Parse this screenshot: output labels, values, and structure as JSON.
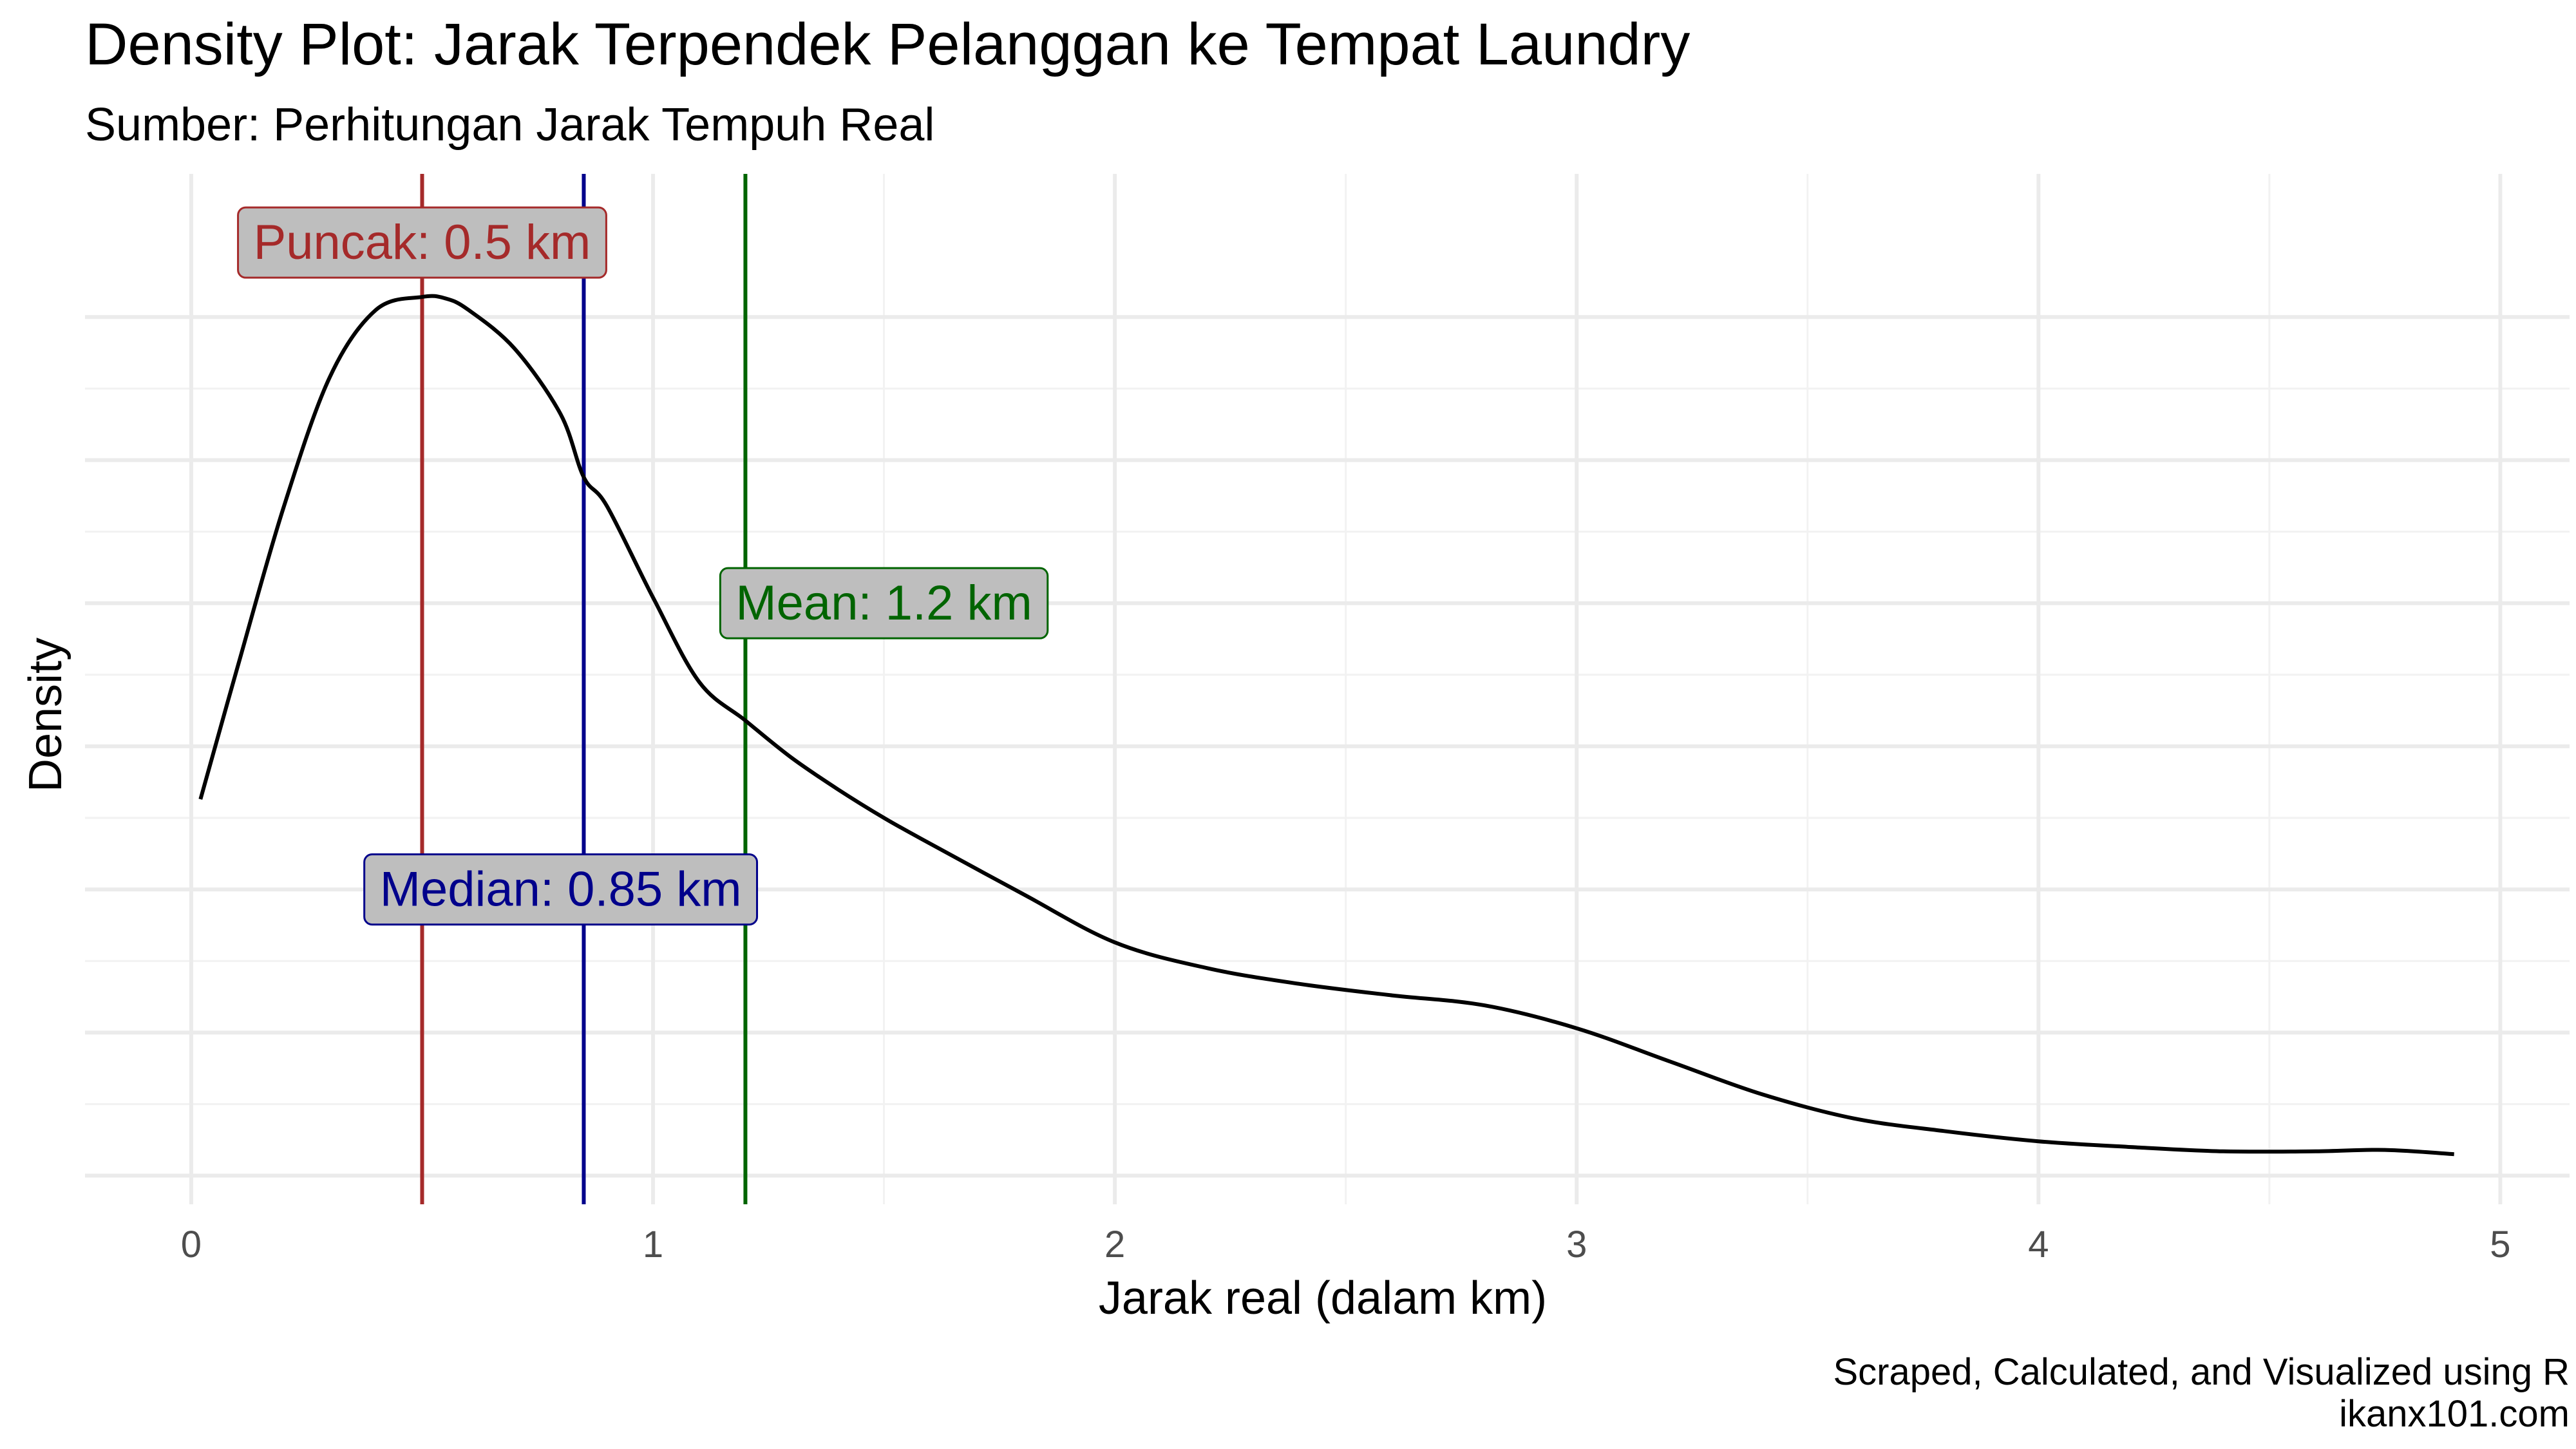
{
  "chart_data": {
    "type": "area",
    "title": "Density Plot: Jarak Terpendek Pelanggan ke Tempat Laundry",
    "subtitle": "Sumber: Perhitungan Jarak Tempuh Real",
    "xlabel": "Jarak real (dalam km)",
    "ylabel": "Density",
    "caption_line1": "Scraped, Calculated, and Visualized using R",
    "caption_line2": "ikanx101.com",
    "xlim": [
      -0.23,
      5.15
    ],
    "ylim": [
      -0.02,
      0.7
    ],
    "x_ticks": [
      0,
      1,
      2,
      3,
      4,
      5
    ],
    "x_tick_labels": [
      "0",
      "1",
      "2",
      "3",
      "4",
      "5"
    ],
    "y_gridlines": [
      0,
      0.1,
      0.2,
      0.3,
      0.4,
      0.5,
      0.6
    ],
    "y_tick_labels_shown": false,
    "grid": true,
    "series": [
      {
        "x": [
          0.02,
          0.1,
          0.2,
          0.3,
          0.4,
          0.5,
          0.55,
          0.6,
          0.7,
          0.8,
          0.85,
          0.9,
          1.0,
          1.1,
          1.2,
          1.3,
          1.4,
          1.5,
          1.6,
          1.8,
          2.0,
          2.2,
          2.4,
          2.6,
          2.8,
          3.0,
          3.2,
          3.4,
          3.6,
          3.8,
          4.0,
          4.2,
          4.4,
          4.6,
          4.75,
          4.9
        ],
        "y": [
          0.263,
          0.355,
          0.467,
          0.558,
          0.605,
          0.614,
          0.613,
          0.605,
          0.578,
          0.532,
          0.488,
          0.468,
          0.404,
          0.345,
          0.318,
          0.292,
          0.27,
          0.25,
          0.232,
          0.197,
          0.163,
          0.145,
          0.134,
          0.126,
          0.119,
          0.103,
          0.08,
          0.057,
          0.04,
          0.031,
          0.024,
          0.02,
          0.017,
          0.017,
          0.018,
          0.015
        ],
        "color": "#000000"
      }
    ],
    "reference_lines": [
      {
        "name": "Puncak",
        "x": 0.5,
        "color": "#A52A2A",
        "label": "Puncak: 0.5 km",
        "label_x": 0.5,
        "label_y": 0.652,
        "fill": "#bebebe"
      },
      {
        "name": "Median",
        "x": 0.85,
        "color": "#00008B",
        "label": "Median: 0.85 km",
        "label_x": 0.8,
        "label_y": 0.2,
        "fill": "#bebebe"
      },
      {
        "name": "Mean",
        "x": 1.2,
        "color": "#006400",
        "label": "Mean: 1.2 km",
        "label_x": 1.5,
        "label_y": 0.4,
        "fill": "#bebebe"
      }
    ]
  }
}
